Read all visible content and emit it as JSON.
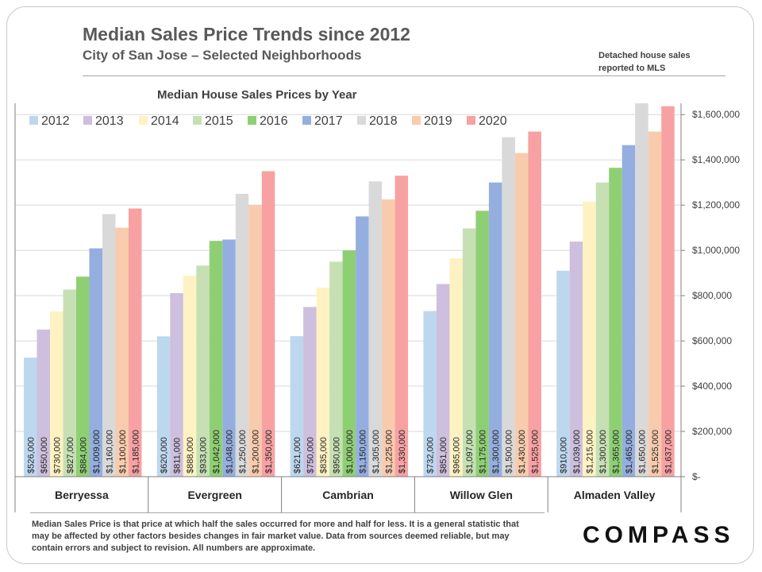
{
  "header": {
    "title": "Median Sales Price Trends since 2012",
    "subtitle": "City of San Jose – Selected Neighborhoods",
    "note_line1": "Detached house sales",
    "note_line2": "reported to MLS"
  },
  "footer": {
    "disclaimer": "Median Sales Price is that price at which half the sales occurred for more and half for less. It is a general statistic that may be affected by other factors besides changes in fair market value. Data from sources deemed reliable, but may contain errors and subject to revision.  All numbers are approximate.",
    "logo": "COMPASS"
  },
  "colors": {
    "2012": "#bdd7ee",
    "2013": "#cdbfdd",
    "2014": "#fff2c2",
    "2015": "#c6e0b4",
    "2016": "#8fcf74",
    "2017": "#94aedf",
    "2018": "#d9d9d9",
    "2019": "#f8cbad",
    "2020": "#f7a1a3"
  },
  "chart_data": {
    "type": "bar",
    "title": "Median House Sales Prices by Year",
    "categories": [
      "Berryessa",
      "Evergreen",
      "Cambrian",
      "Willow Glen",
      "Almaden Valley"
    ],
    "series": [
      {
        "name": "2012",
        "values": [
          526000,
          620000,
          621000,
          732000,
          910000
        ]
      },
      {
        "name": "2013",
        "values": [
          650000,
          811000,
          750000,
          851000,
          1039000
        ]
      },
      {
        "name": "2014",
        "values": [
          730000,
          888000,
          835000,
          965000,
          1215000
        ]
      },
      {
        "name": "2015",
        "values": [
          827000,
          933000,
          950000,
          1097000,
          1300000
        ]
      },
      {
        "name": "2016",
        "values": [
          884000,
          1042000,
          1000000,
          1175000,
          1365000
        ]
      },
      {
        "name": "2017",
        "values": [
          1009000,
          1048000,
          1150000,
          1300000,
          1465000
        ]
      },
      {
        "name": "2018",
        "values": [
          1160000,
          1250000,
          1305000,
          1500000,
          1650000
        ]
      },
      {
        "name": "2019",
        "values": [
          1100000,
          1200000,
          1225000,
          1430000,
          1525000
        ]
      },
      {
        "name": "2020",
        "values": [
          1185000,
          1350000,
          1330000,
          1525000,
          1637000
        ]
      }
    ],
    "data_labels": [
      [
        "$526,000",
        "$620,000",
        "$621,000",
        "$732,000",
        "$910,000"
      ],
      [
        "$650,000",
        "$811,000",
        "$750,000",
        "$851,000",
        "$1,039,000"
      ],
      [
        "$730,000",
        "$888,000",
        "$835,000",
        "$965,000",
        "$1,215,000"
      ],
      [
        "$827,000",
        "$933,000",
        "$950,000",
        "$1,097,000",
        "$1,300,000"
      ],
      [
        "$884,000",
        "$1,042,000",
        "$1,000,000",
        "$1,175,000",
        "$1,365,000"
      ],
      [
        "$1,009,000",
        "$1,048,000",
        "$1,150,000",
        "$1,300,000",
        "$1,465,000"
      ],
      [
        "$1,160,000",
        "$1,250,000",
        "$1,305,000",
        "$1,500,000",
        "$1,650,000"
      ],
      [
        "$1,100,000",
        "$1,200,000",
        "$1,225,000",
        "$1,430,000",
        "$1,525,000"
      ],
      [
        "$1,185,000",
        "$1,350,000",
        "$1,330,000",
        "$1,525,000",
        "$1,637,000"
      ]
    ],
    "y_ticks": [
      0,
      200000,
      400000,
      600000,
      800000,
      1000000,
      1200000,
      1400000,
      1600000
    ],
    "y_tick_labels": [
      "$-",
      "$200,000",
      "$400,000",
      "$600,000",
      "$800,000",
      "$1,000,000",
      "$1,200,000",
      "$1,400,000",
      "$1,600,000"
    ],
    "ylim": [
      0,
      1650000
    ],
    "y_axis_position": "right",
    "grid": true,
    "legend_position": "top-left"
  }
}
